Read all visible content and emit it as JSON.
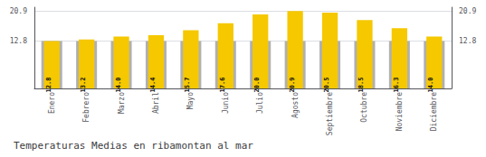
{
  "chart_data": {
    "type": "bar",
    "title": "Temperaturas Medias en ribamontan al mar",
    "categories": [
      "Enero",
      "Febrero",
      "Marzo",
      "Abril",
      "Mayo",
      "Junio",
      "Julio",
      "Agosto",
      "Septiembre",
      "Octubre",
      "Noviembre",
      "Diciembre"
    ],
    "series": [
      {
        "color": "#B0B0B0",
        "values": [
          12.8,
          12.8,
          12.8,
          12.8,
          12.8,
          12.8,
          12.8,
          12.8,
          12.8,
          12.8,
          12.8,
          12.8
        ]
      },
      {
        "color": "#F5C800",
        "values": [
          12.8,
          13.2,
          14.0,
          14.4,
          15.7,
          17.6,
          20.0,
          20.9,
          20.5,
          18.5,
          16.3,
          14.0
        ],
        "value_labels": [
          "12.8",
          "13.2",
          "14.0",
          "14.4",
          "15.7",
          "17.6",
          "20.0",
          "20.9",
          "20.5",
          "18.5",
          "16.3",
          "14.0"
        ],
        "data_labels": true
      }
    ],
    "ylim": [
      0,
      21.945
    ],
    "yticks": [
      12.8,
      20.9
    ],
    "y2lim": [
      0,
      21.945
    ],
    "y2ticks": [
      12.8,
      20.9
    ],
    "grid": true
  }
}
